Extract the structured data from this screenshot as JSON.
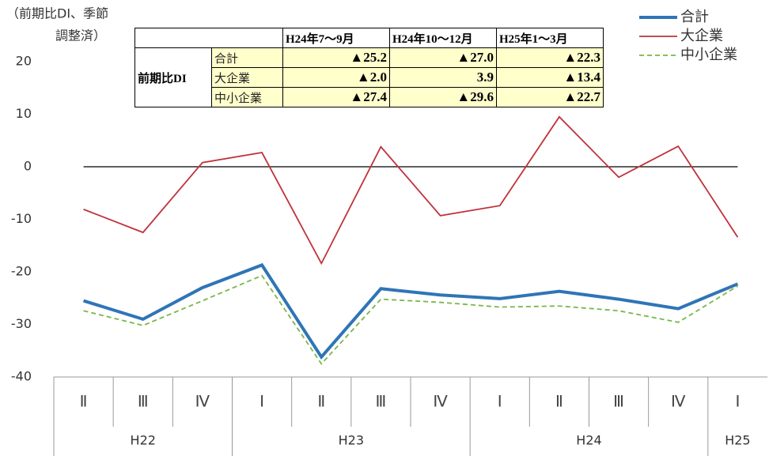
{
  "chart_data": {
    "type": "line",
    "ylabel": [
      "（前期比DI、季節",
      "調整済）"
    ],
    "categories": [
      "Ⅱ",
      "Ⅲ",
      "Ⅳ",
      "Ⅰ",
      "Ⅱ",
      "Ⅲ",
      "Ⅳ",
      "Ⅰ",
      "Ⅱ",
      "Ⅲ",
      "Ⅳ",
      "Ⅰ"
    ],
    "category_groups": [
      {
        "label": "H22",
        "start": 0,
        "end": 2
      },
      {
        "label": "H23",
        "start": 3,
        "end": 6
      },
      {
        "label": "H24",
        "start": 7,
        "end": 10
      },
      {
        "label": "H25",
        "start": 11,
        "end": 11
      }
    ],
    "series": [
      {
        "name": "合計",
        "color": "#2e75b6",
        "width": 4,
        "dash": "none",
        "values": [
          -25.5,
          -29.0,
          -23.0,
          -18.7,
          -36.2,
          -23.2,
          -24.4,
          -25.1,
          -23.7,
          -25.2,
          -27.0,
          -22.3
        ]
      },
      {
        "name": "大企業",
        "color": "#c0323c",
        "width": 1.8,
        "dash": "none",
        "values": [
          -8.1,
          -12.5,
          0.8,
          2.7,
          -18.4,
          3.8,
          -9.3,
          -7.4,
          9.5,
          -2.0,
          3.9,
          -13.4
        ]
      },
      {
        "name": "中小企業",
        "color": "#7ab648",
        "width": 1.8,
        "dash": "6 4",
        "values": [
          -27.4,
          -30.2,
          -25.5,
          -20.7,
          -37.5,
          -25.2,
          -25.8,
          -26.7,
          -26.5,
          -27.4,
          -29.6,
          -22.7
        ]
      }
    ],
    "ylim": [
      -40,
      20
    ],
    "yticks": [
      -40,
      -30,
      -20,
      -10,
      0,
      10,
      20
    ]
  },
  "table": {
    "columns": [
      "H24年7～9月",
      "H24年10～12月",
      "H25年1～3月"
    ],
    "row_header": "前期比DI",
    "rows": [
      {
        "name": "合計",
        "cells": [
          "▲25.2",
          "▲27.0",
          "▲22.3"
        ]
      },
      {
        "name": "大企業",
        "cells": [
          "▲2.0",
          "3.9",
          "▲13.4"
        ]
      },
      {
        "name": "中小企業",
        "cells": [
          "▲27.4",
          "▲29.6",
          "▲22.7"
        ]
      }
    ]
  }
}
